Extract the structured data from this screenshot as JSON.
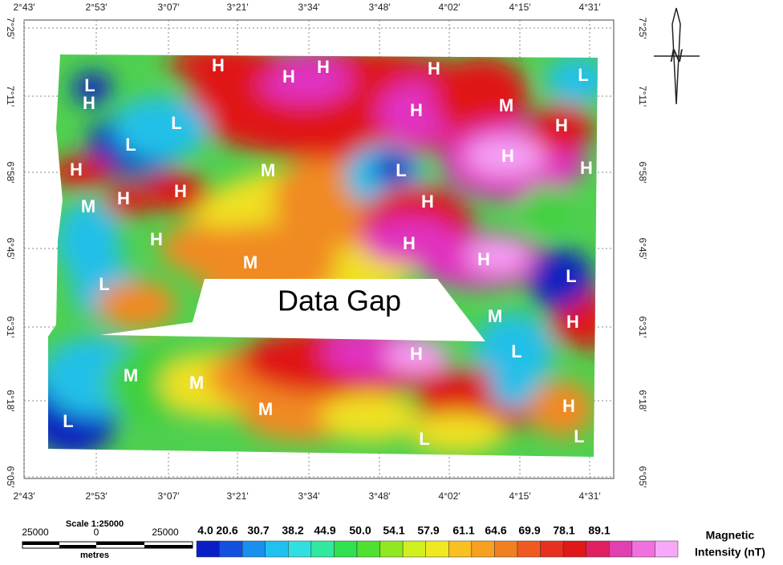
{
  "map": {
    "longitudes": [
      "2°43′",
      "2°53′",
      "3°07′",
      "3°21′",
      "3°34′",
      "3°48′",
      "4°02′",
      "4°15′",
      "4°31′"
    ],
    "latitudes": [
      "7°25′",
      "7°11′",
      "6°58′",
      "6°45′",
      "6°31′",
      "6°18′",
      "6°05′"
    ],
    "gap_label": "Data Gap",
    "zone_labels": [
      "H",
      "H",
      "H",
      "H",
      "L",
      "L",
      "H",
      "H",
      "M",
      "L",
      "H",
      "L",
      "H",
      "M",
      "L",
      "H",
      "H",
      "H",
      "H",
      "H",
      "M",
      "H",
      "H",
      "M",
      "H",
      "L",
      "L",
      "M",
      "H",
      "H",
      "L",
      "M",
      "M",
      "H",
      "M",
      "L",
      "L",
      "L"
    ],
    "north": "N"
  },
  "scale_bar": {
    "title": "Scale 1:25000",
    "left": "25000",
    "center": "0",
    "right": "25000",
    "unit": "metres"
  },
  "legend": {
    "title_line1": "Magnetic",
    "title_line2": "Intensity (nT)",
    "labels": [
      "4.0",
      "20.6",
      "30.7",
      "38.2",
      "44.9",
      "50.0",
      "54.1",
      "57.9",
      "61.1",
      "64.6",
      "69.9",
      "78.1",
      "89.1"
    ]
  }
}
